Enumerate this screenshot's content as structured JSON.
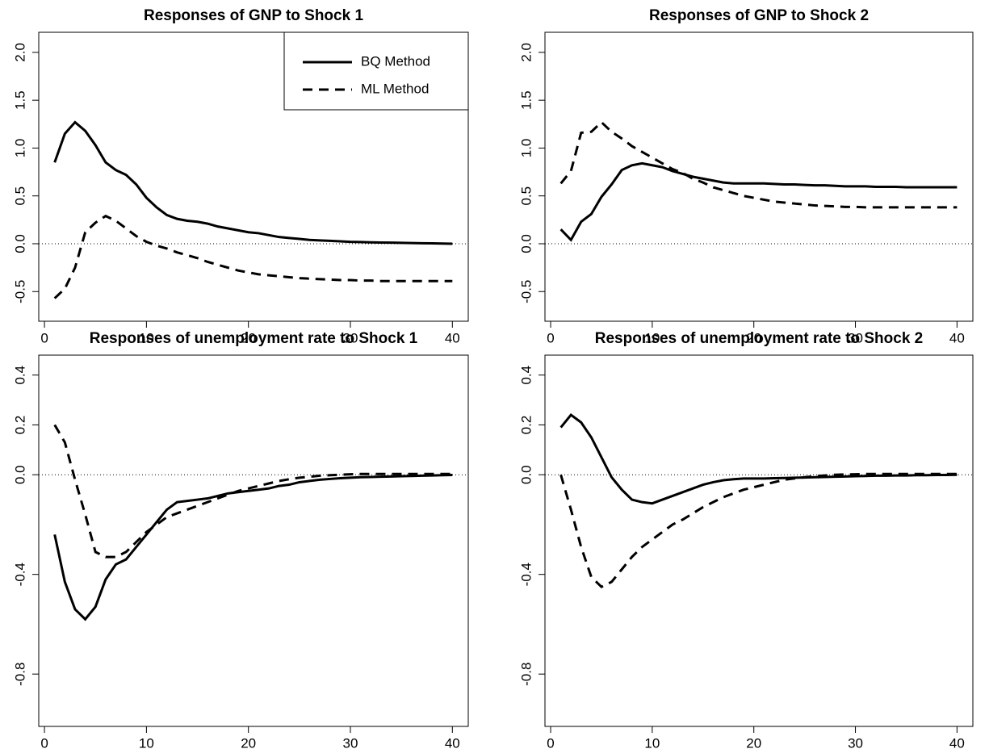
{
  "chart_data": [
    {
      "type": "line",
      "title": "Responses of GNP to Shock 1",
      "x": [
        1,
        2,
        3,
        4,
        5,
        6,
        7,
        8,
        9,
        10,
        11,
        12,
        13,
        14,
        15,
        16,
        17,
        18,
        19,
        20,
        21,
        22,
        23,
        24,
        25,
        26,
        27,
        28,
        29,
        30,
        31,
        32,
        33,
        34,
        35,
        36,
        37,
        38,
        39,
        40
      ],
      "series": [
        {
          "name": "BQ Method",
          "color": "#000000",
          "line_style": "solid",
          "values": [
            0.85,
            1.15,
            1.27,
            1.18,
            1.03,
            0.85,
            0.77,
            0.72,
            0.62,
            0.48,
            0.38,
            0.3,
            0.26,
            0.24,
            0.23,
            0.21,
            0.18,
            0.16,
            0.14,
            0.12,
            0.11,
            0.09,
            0.07,
            0.06,
            0.05,
            0.04,
            0.035,
            0.03,
            0.025,
            0.02,
            0.018,
            0.015,
            0.013,
            0.011,
            0.009,
            0.007,
            0.005,
            0.004,
            0.002,
            0.0
          ]
        },
        {
          "name": "ML Method",
          "color": "#000000",
          "line_style": "dashed",
          "values": [
            -0.57,
            -0.47,
            -0.25,
            0.12,
            0.22,
            0.29,
            0.24,
            0.16,
            0.08,
            0.02,
            -0.02,
            -0.05,
            -0.09,
            -0.12,
            -0.15,
            -0.19,
            -0.22,
            -0.25,
            -0.28,
            -0.3,
            -0.32,
            -0.33,
            -0.34,
            -0.35,
            -0.36,
            -0.365,
            -0.37,
            -0.375,
            -0.38,
            -0.38,
            -0.385,
            -0.385,
            -0.39,
            -0.39,
            -0.39,
            -0.39,
            -0.39,
            -0.39,
            -0.39,
            -0.39
          ]
        }
      ],
      "xlim": [
        -0.56,
        41.56
      ],
      "xticks": [
        0,
        10,
        20,
        30,
        40
      ],
      "ylim": [
        -0.81,
        2.21
      ],
      "yticks": [
        -0.5,
        {
          "value": 0,
          "label": "0.0"
        },
        0.5,
        {
          "value": 1,
          "label": "1.0"
        },
        1.5,
        {
          "value": 2,
          "label": "2.0"
        }
      ],
      "hline": 0,
      "legend": "top-right"
    },
    {
      "type": "line",
      "title": "Responses of GNP to Shock 2",
      "x": [
        1,
        2,
        3,
        4,
        5,
        6,
        7,
        8,
        9,
        10,
        11,
        12,
        13,
        14,
        15,
        16,
        17,
        18,
        19,
        20,
        21,
        22,
        23,
        24,
        25,
        26,
        27,
        28,
        29,
        30,
        31,
        32,
        33,
        34,
        35,
        36,
        37,
        38,
        39,
        40
      ],
      "series": [
        {
          "name": "BQ Method",
          "color": "#000000",
          "line_style": "solid",
          "values": [
            0.15,
            0.04,
            0.23,
            0.31,
            0.49,
            0.62,
            0.77,
            0.82,
            0.84,
            0.82,
            0.8,
            0.76,
            0.73,
            0.7,
            0.68,
            0.66,
            0.64,
            0.63,
            0.63,
            0.63,
            0.63,
            0.625,
            0.62,
            0.62,
            0.615,
            0.61,
            0.61,
            0.605,
            0.6,
            0.6,
            0.6,
            0.595,
            0.595,
            0.595,
            0.59,
            0.59,
            0.59,
            0.59,
            0.59,
            0.59
          ]
        },
        {
          "name": "ML Method",
          "color": "#000000",
          "line_style": "dashed",
          "values": [
            0.63,
            0.76,
            1.16,
            1.17,
            1.27,
            1.17,
            1.1,
            1.02,
            0.96,
            0.9,
            0.84,
            0.78,
            0.74,
            0.68,
            0.64,
            0.59,
            0.56,
            0.53,
            0.5,
            0.48,
            0.46,
            0.44,
            0.43,
            0.42,
            0.41,
            0.4,
            0.395,
            0.39,
            0.385,
            0.385,
            0.38,
            0.38,
            0.38,
            0.38,
            0.38,
            0.38,
            0.38,
            0.38,
            0.38,
            0.38
          ]
        }
      ],
      "xlim": [
        -0.56,
        41.56
      ],
      "xticks": [
        0,
        10,
        20,
        30,
        40
      ],
      "ylim": [
        -0.81,
        2.21
      ],
      "yticks": [
        -0.5,
        {
          "value": 0,
          "label": "0.0"
        },
        0.5,
        {
          "value": 1,
          "label": "1.0"
        },
        1.5,
        {
          "value": 2,
          "label": "2.0"
        }
      ],
      "hline": 0
    },
    {
      "type": "line",
      "title": "Responses of unemployment rate to Shock 1",
      "x": [
        1,
        2,
        3,
        4,
        5,
        6,
        7,
        8,
        9,
        10,
        11,
        12,
        13,
        14,
        15,
        16,
        17,
        18,
        19,
        20,
        21,
        22,
        23,
        24,
        25,
        26,
        27,
        28,
        29,
        30,
        31,
        32,
        33,
        34,
        35,
        36,
        37,
        38,
        39,
        40
      ],
      "series": [
        {
          "name": "BQ Method",
          "color": "#000000",
          "line_style": "solid",
          "values": [
            -0.24,
            -0.43,
            -0.54,
            -0.58,
            -0.53,
            -0.42,
            -0.36,
            -0.34,
            -0.29,
            -0.24,
            -0.19,
            -0.14,
            -0.11,
            -0.105,
            -0.1,
            -0.095,
            -0.085,
            -0.075,
            -0.07,
            -0.065,
            -0.06,
            -0.055,
            -0.045,
            -0.04,
            -0.03,
            -0.025,
            -0.02,
            -0.017,
            -0.014,
            -0.012,
            -0.01,
            -0.009,
            -0.008,
            -0.007,
            -0.006,
            -0.005,
            -0.004,
            -0.003,
            -0.002,
            -0.001
          ]
        },
        {
          "name": "ML Method",
          "color": "#000000",
          "line_style": "dashed",
          "values": [
            0.2,
            0.13,
            -0.02,
            -0.16,
            -0.31,
            -0.33,
            -0.33,
            -0.31,
            -0.27,
            -0.23,
            -0.2,
            -0.17,
            -0.155,
            -0.14,
            -0.125,
            -0.11,
            -0.095,
            -0.08,
            -0.065,
            -0.055,
            -0.045,
            -0.035,
            -0.025,
            -0.018,
            -0.012,
            -0.008,
            -0.004,
            -0.002,
            0,
            0.002,
            0.003,
            0.003,
            0.003,
            0.003,
            0.003,
            0.003,
            0.003,
            0.003,
            0.003,
            0.003
          ]
        }
      ],
      "xlim": [
        -0.56,
        41.56
      ],
      "xticks": [
        0,
        10,
        20,
        30,
        40
      ],
      "ylim": [
        -1.01,
        0.48
      ],
      "yticks": [
        -0.8,
        -0.4,
        {
          "value": 0,
          "label": "0.0"
        },
        0.2,
        0.4
      ],
      "hline": 0
    },
    {
      "type": "line",
      "title": "Responses of unemployment rate to Shock 2",
      "x": [
        1,
        2,
        3,
        4,
        5,
        6,
        7,
        8,
        9,
        10,
        11,
        12,
        13,
        14,
        15,
        16,
        17,
        18,
        19,
        20,
        21,
        22,
        23,
        24,
        25,
        26,
        27,
        28,
        29,
        30,
        31,
        32,
        33,
        34,
        35,
        36,
        37,
        38,
        39,
        40
      ],
      "series": [
        {
          "name": "BQ Method",
          "color": "#000000",
          "line_style": "solid",
          "values": [
            0.19,
            0.24,
            0.21,
            0.15,
            0.07,
            -0.01,
            -0.06,
            -0.1,
            -0.11,
            -0.115,
            -0.1,
            -0.085,
            -0.07,
            -0.055,
            -0.04,
            -0.03,
            -0.022,
            -0.018,
            -0.015,
            -0.015,
            -0.015,
            -0.014,
            -0.013,
            -0.012,
            -0.011,
            -0.01,
            -0.009,
            -0.008,
            -0.007,
            -0.006,
            -0.005,
            -0.004,
            -0.004,
            -0.003,
            -0.003,
            -0.002,
            -0.002,
            -0.001,
            -0.001,
            0
          ]
        },
        {
          "name": "ML Method",
          "color": "#000000",
          "line_style": "dashed",
          "values": [
            0,
            -0.14,
            -0.29,
            -0.41,
            -0.45,
            -0.43,
            -0.38,
            -0.33,
            -0.29,
            -0.26,
            -0.23,
            -0.2,
            -0.18,
            -0.155,
            -0.13,
            -0.11,
            -0.09,
            -0.075,
            -0.06,
            -0.05,
            -0.04,
            -0.03,
            -0.02,
            -0.015,
            -0.01,
            -0.006,
            -0.003,
            0,
            0.001,
            0.002,
            0.003,
            0.003,
            0.003,
            0.003,
            0.003,
            0.003,
            0.003,
            0.003,
            0.003,
            0.003
          ]
        }
      ],
      "xlim": [
        -0.56,
        41.56
      ],
      "xticks": [
        0,
        10,
        20,
        30,
        40
      ],
      "ylim": [
        -1.01,
        0.48
      ],
      "yticks": [
        -0.8,
        -0.4,
        {
          "value": 0,
          "label": "0.0"
        },
        0.2,
        0.4
      ],
      "hline": 0
    }
  ]
}
